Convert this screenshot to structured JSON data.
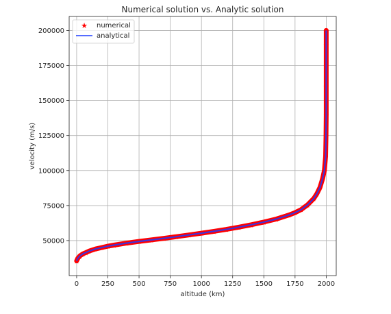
{
  "chart_data": {
    "type": "line",
    "title": "Numerical solution vs. Analytic solution",
    "xlabel": "altitude (km)",
    "ylabel": "velocity (m/s)",
    "xlim": [
      -60,
      2080
    ],
    "ylim": [
      25000,
      210000
    ],
    "xticks": [
      0,
      250,
      500,
      750,
      1000,
      1250,
      1500,
      1750,
      2000
    ],
    "yticks": [
      50000,
      75000,
      100000,
      125000,
      150000,
      175000,
      200000
    ],
    "grid": true,
    "legend_position": "upper-left",
    "series": [
      {
        "name": "numerical",
        "style": "marker",
        "marker": "star",
        "color": "#ff0000",
        "x": [
          0,
          5,
          10,
          25,
          50,
          75,
          100,
          150,
          200,
          250,
          300,
          400,
          500,
          600,
          700,
          800,
          900,
          1000,
          1100,
          1200,
          1300,
          1400,
          1500,
          1600,
          1700,
          1750,
          1800,
          1850,
          1900,
          1925,
          1950,
          1970,
          1985,
          1995,
          1998,
          2000,
          2000,
          2000,
          2000,
          2000
        ],
        "y": [
          35500,
          36500,
          37500,
          39000,
          40500,
          41500,
          42500,
          44000,
          45000,
          46000,
          46800,
          48200,
          49400,
          50500,
          51600,
          52800,
          54000,
          55300,
          56600,
          58000,
          59600,
          61300,
          63200,
          65400,
          68200,
          70000,
          72200,
          75500,
          80000,
          83500,
          88000,
          94000,
          100000,
          110000,
          125000,
          140000,
          160000,
          175000,
          190000,
          200000
        ]
      },
      {
        "name": "analytical",
        "style": "line",
        "color": "#1f3dff",
        "x": [
          0,
          5,
          10,
          25,
          50,
          75,
          100,
          150,
          200,
          250,
          300,
          400,
          500,
          600,
          700,
          800,
          900,
          1000,
          1100,
          1200,
          1300,
          1400,
          1500,
          1600,
          1700,
          1750,
          1800,
          1850,
          1900,
          1925,
          1950,
          1970,
          1985,
          1995,
          1998,
          2000,
          2000,
          2000,
          2000,
          2000
        ],
        "y": [
          35500,
          36500,
          37500,
          39000,
          40500,
          41500,
          42500,
          44000,
          45000,
          46000,
          46800,
          48200,
          49400,
          50500,
          51600,
          52800,
          54000,
          55300,
          56600,
          58000,
          59600,
          61300,
          63200,
          65400,
          68200,
          70000,
          72200,
          75500,
          80000,
          83500,
          88000,
          94000,
          100000,
          110000,
          125000,
          140000,
          160000,
          175000,
          190000,
          200000
        ]
      }
    ]
  }
}
